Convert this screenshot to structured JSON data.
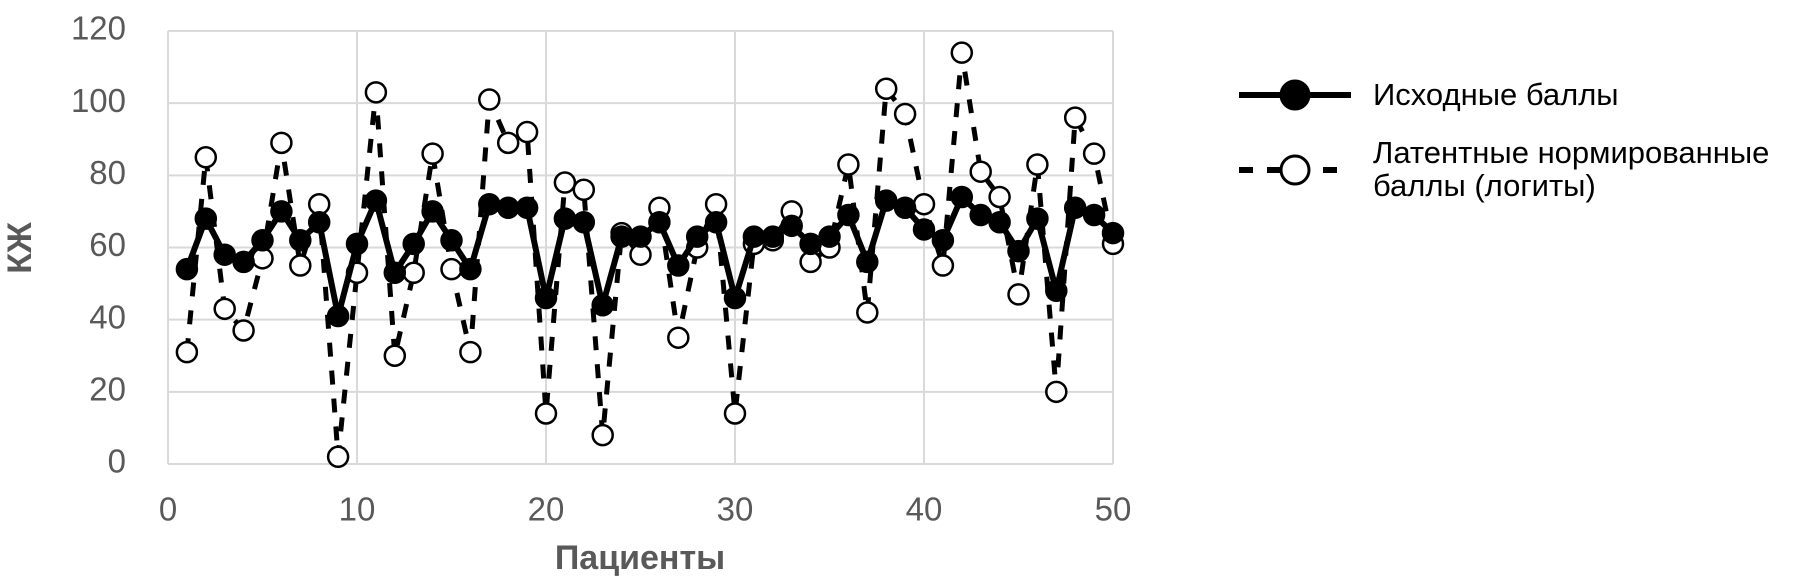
{
  "chart_data": {
    "type": "line",
    "x_label": "Пациенты",
    "y_label": "КЖ",
    "x": [
      1,
      2,
      3,
      4,
      5,
      6,
      7,
      8,
      9,
      10,
      11,
      12,
      13,
      14,
      15,
      16,
      17,
      18,
      19,
      20,
      21,
      22,
      23,
      24,
      25,
      26,
      27,
      28,
      29,
      30,
      31,
      32,
      33,
      34,
      35,
      36,
      37,
      38,
      39,
      40,
      41,
      42,
      43,
      44,
      45,
      46,
      47,
      48,
      49,
      50
    ],
    "series": [
      {
        "name": "Латентные нормированные баллы (логиты)",
        "color": "#000000",
        "line_style": "dashed",
        "marker_fill": "#ffffff",
        "values": [
          31,
          85,
          43,
          37,
          57,
          89,
          55,
          72,
          2,
          53,
          103,
          30,
          53,
          86,
          54,
          31,
          101,
          89,
          92,
          14,
          78,
          76,
          8,
          64,
          58,
          71,
          35,
          60,
          72,
          14,
          61,
          62,
          70,
          56,
          60,
          83,
          42,
          104,
          97,
          72,
          55,
          114,
          81,
          74,
          47,
          83,
          20,
          96,
          86,
          61
        ]
      },
      {
        "name": "Исходные баллы",
        "color": "#000000",
        "line_style": "solid",
        "marker_fill": "#000000",
        "values": [
          54,
          68,
          58,
          56,
          62,
          70,
          62,
          67,
          41,
          61,
          73,
          53,
          61,
          70,
          62,
          54,
          72,
          71,
          71,
          46,
          68,
          67,
          44,
          63,
          63,
          67,
          55,
          63,
          67,
          46,
          63,
          63,
          66,
          61,
          63,
          69,
          56,
          73,
          71,
          65,
          62,
          74,
          69,
          67,
          59,
          68,
          48,
          71,
          69,
          64
        ]
      }
    ],
    "legend_order": [
      1,
      0
    ],
    "xlim": [
      0,
      50
    ],
    "xticks": [
      0,
      10,
      20,
      30,
      40,
      50
    ],
    "ylim": [
      0,
      120
    ],
    "yticks": [
      0,
      20,
      40,
      60,
      80,
      100,
      120
    ],
    "grid": true,
    "legend": "right"
  }
}
